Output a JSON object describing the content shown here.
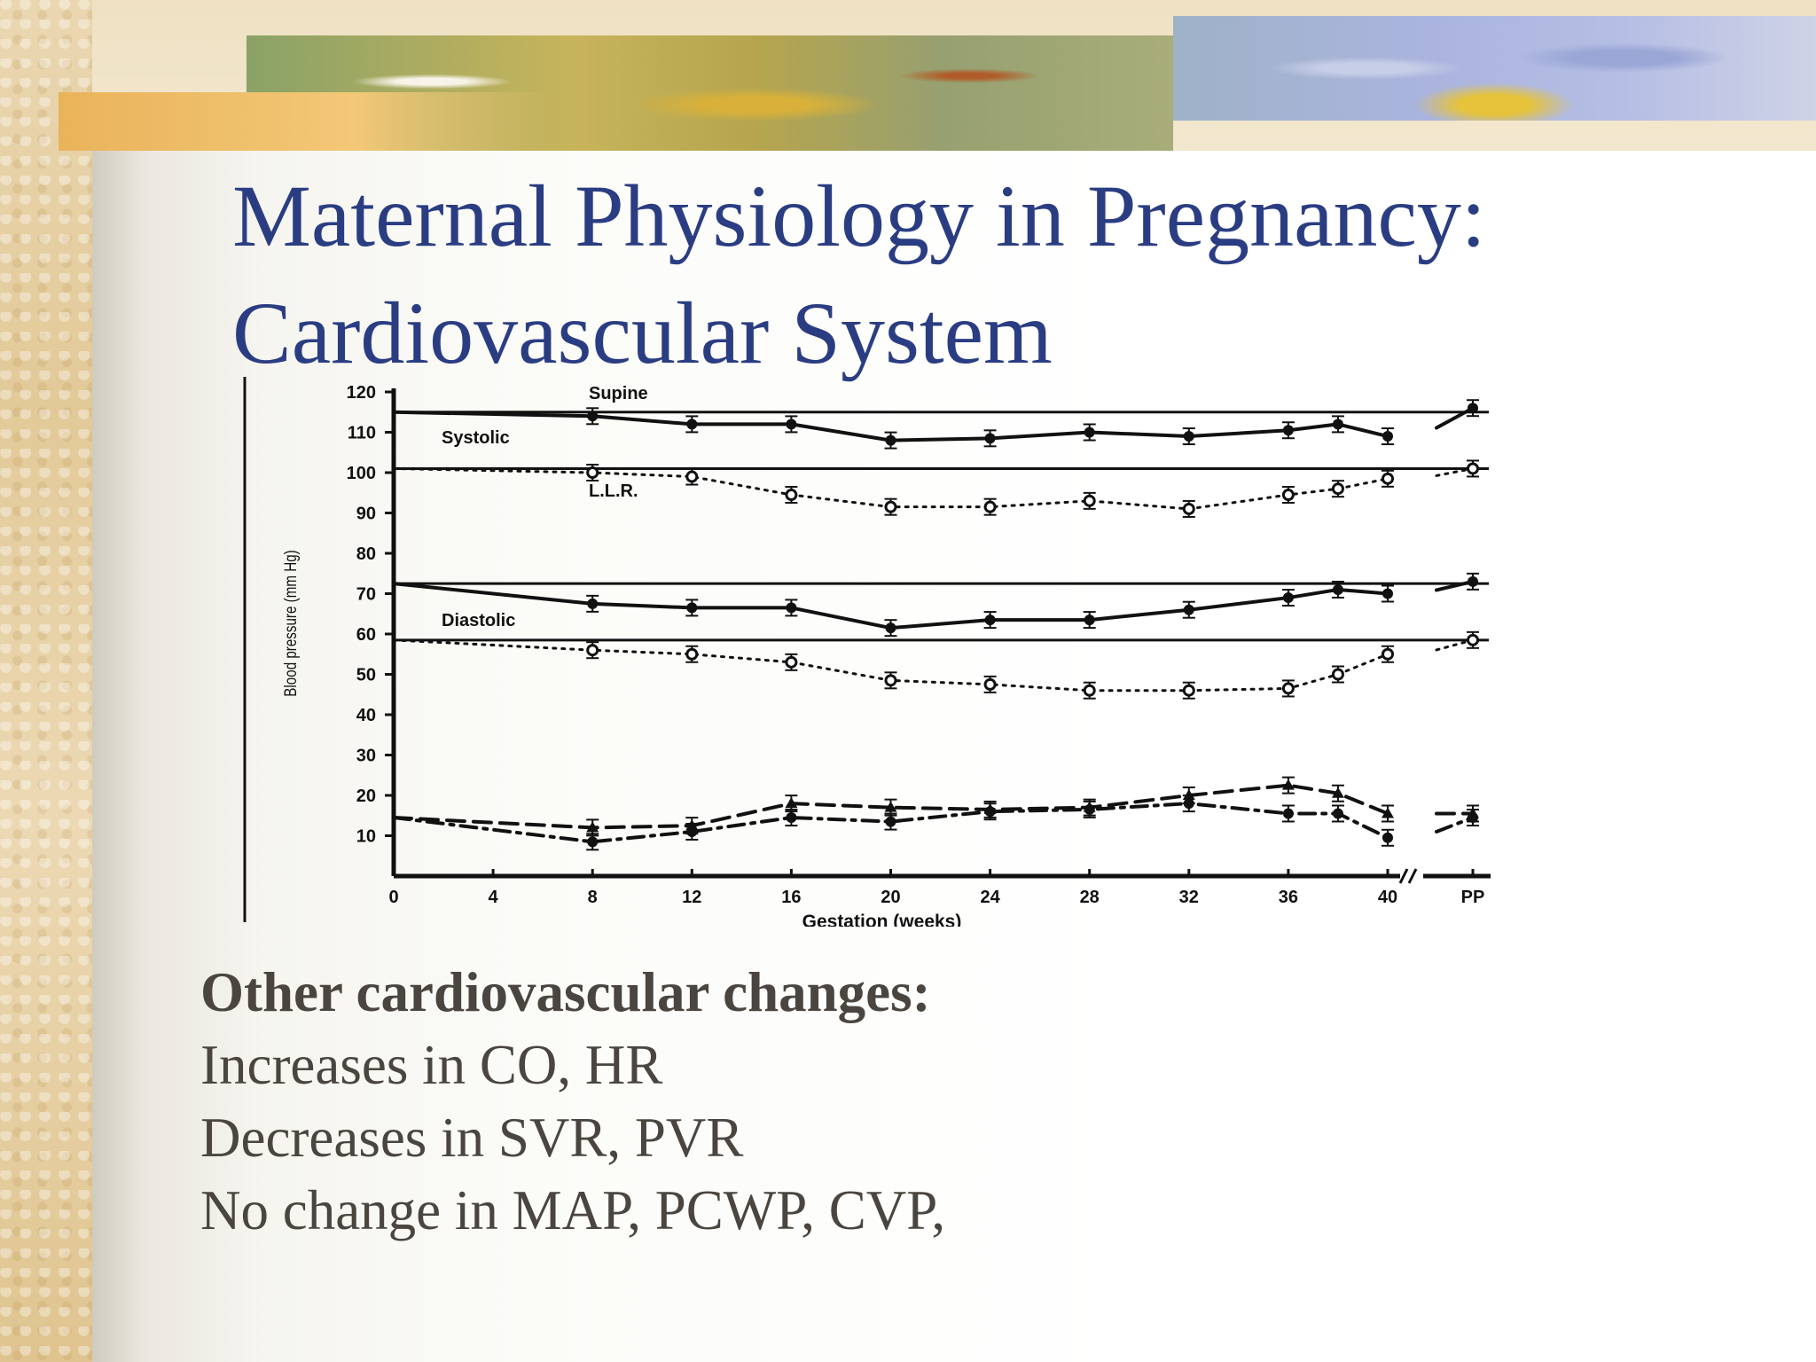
{
  "slide": {
    "title_line_1": "Maternal Physiology in Pregnancy:",
    "title_line_2": "Cardiovascular System",
    "notes_heading": "Other cardiovascular changes:",
    "notes": [
      "Increases in CO, HR",
      "Decreases in SVR, PVR",
      "No change in MAP, PCWP, CVP,"
    ]
  },
  "colors": {
    "title": "#2b3d82",
    "body_text": "#4a463f",
    "chart_ink": "#111111"
  },
  "chart_data": {
    "type": "line",
    "xlabel": "Gestation (weeks)",
    "ylabel": "Blood pressure (mm Hg)",
    "ylim": [
      0,
      120
    ],
    "xlim": [
      0,
      40
    ],
    "x_ticks": [
      "0",
      "4",
      "8",
      "12",
      "16",
      "20",
      "24",
      "28",
      "32",
      "36",
      "40",
      "PP"
    ],
    "y_ticks": [
      "10",
      "20",
      "30",
      "40",
      "50",
      "60",
      "70",
      "80",
      "90",
      "100",
      "110",
      "120"
    ],
    "grid": false,
    "annotations": [
      "Supine",
      "Systolic",
      "L.L.R.",
      "Diastolic"
    ],
    "reference_lines": [
      {
        "y": 115,
        "style": "solid"
      },
      {
        "y": 101,
        "style": "solid"
      },
      {
        "y": 72.5,
        "style": "solid"
      },
      {
        "y": 58.5,
        "style": "solid"
      }
    ],
    "series": [
      {
        "style": "solid",
        "marker": "filled-circle",
        "label_on_chart": "Systolic",
        "points": [
          [
            0,
            115
          ],
          [
            8,
            114
          ],
          [
            12,
            112
          ],
          [
            16,
            112
          ],
          [
            20,
            108
          ],
          [
            24,
            108.5
          ],
          [
            28,
            110
          ],
          [
            32,
            109
          ],
          [
            36,
            110.5
          ],
          [
            38,
            112
          ],
          [
            40,
            109
          ]
        ],
        "pp": 116
      },
      {
        "style": "dotted",
        "marker": "open-circle",
        "label_on_chart": "L.L.R.",
        "points": [
          [
            0,
            101
          ],
          [
            8,
            100
          ],
          [
            12,
            99
          ],
          [
            16,
            94.5
          ],
          [
            20,
            91.5
          ],
          [
            24,
            91.5
          ],
          [
            28,
            93
          ],
          [
            32,
            91
          ],
          [
            36,
            94.5
          ],
          [
            38,
            96
          ],
          [
            40,
            98.5
          ]
        ],
        "pp": 101
      },
      {
        "style": "solid",
        "marker": "filled-circle",
        "label_on_chart": "Diastolic",
        "points": [
          [
            0,
            72.5
          ],
          [
            8,
            67.5
          ],
          [
            12,
            66.5
          ],
          [
            16,
            66.5
          ],
          [
            20,
            61.5
          ],
          [
            24,
            63.5
          ],
          [
            28,
            63.5
          ],
          [
            32,
            66
          ],
          [
            36,
            69
          ],
          [
            38,
            71
          ],
          [
            40,
            70
          ]
        ],
        "pp": 73
      },
      {
        "style": "dotted",
        "marker": "open-circle",
        "points": [
          [
            0,
            58.5
          ],
          [
            8,
            56
          ],
          [
            12,
            55
          ],
          [
            16,
            53
          ],
          [
            20,
            48.5
          ],
          [
            24,
            47.5
          ],
          [
            28,
            46
          ],
          [
            32,
            46
          ],
          [
            36,
            46.5
          ],
          [
            38,
            50
          ],
          [
            40,
            55
          ]
        ],
        "pp": 58.5
      },
      {
        "style": "dashed",
        "marker": "triangle",
        "points": [
          [
            0,
            14.5
          ],
          [
            8,
            12
          ],
          [
            12,
            12.5
          ],
          [
            16,
            18
          ],
          [
            20,
            17
          ],
          [
            24,
            16.5
          ],
          [
            28,
            17
          ],
          [
            32,
            20
          ],
          [
            36,
            22.5
          ],
          [
            38,
            20.5
          ],
          [
            40,
            15.5
          ]
        ],
        "pp": 15.5
      },
      {
        "style": "dash-dot",
        "marker": "filled-circle",
        "points": [
          [
            0,
            14.5
          ],
          [
            8,
            8.5
          ],
          [
            12,
            11
          ],
          [
            16,
            14.5
          ],
          [
            20,
            13.5
          ],
          [
            24,
            16
          ],
          [
            28,
            16.5
          ],
          [
            32,
            18
          ],
          [
            36,
            15.5
          ],
          [
            38,
            15.5
          ],
          [
            40,
            9.5
          ]
        ],
        "pp": 14.5
      }
    ]
  }
}
